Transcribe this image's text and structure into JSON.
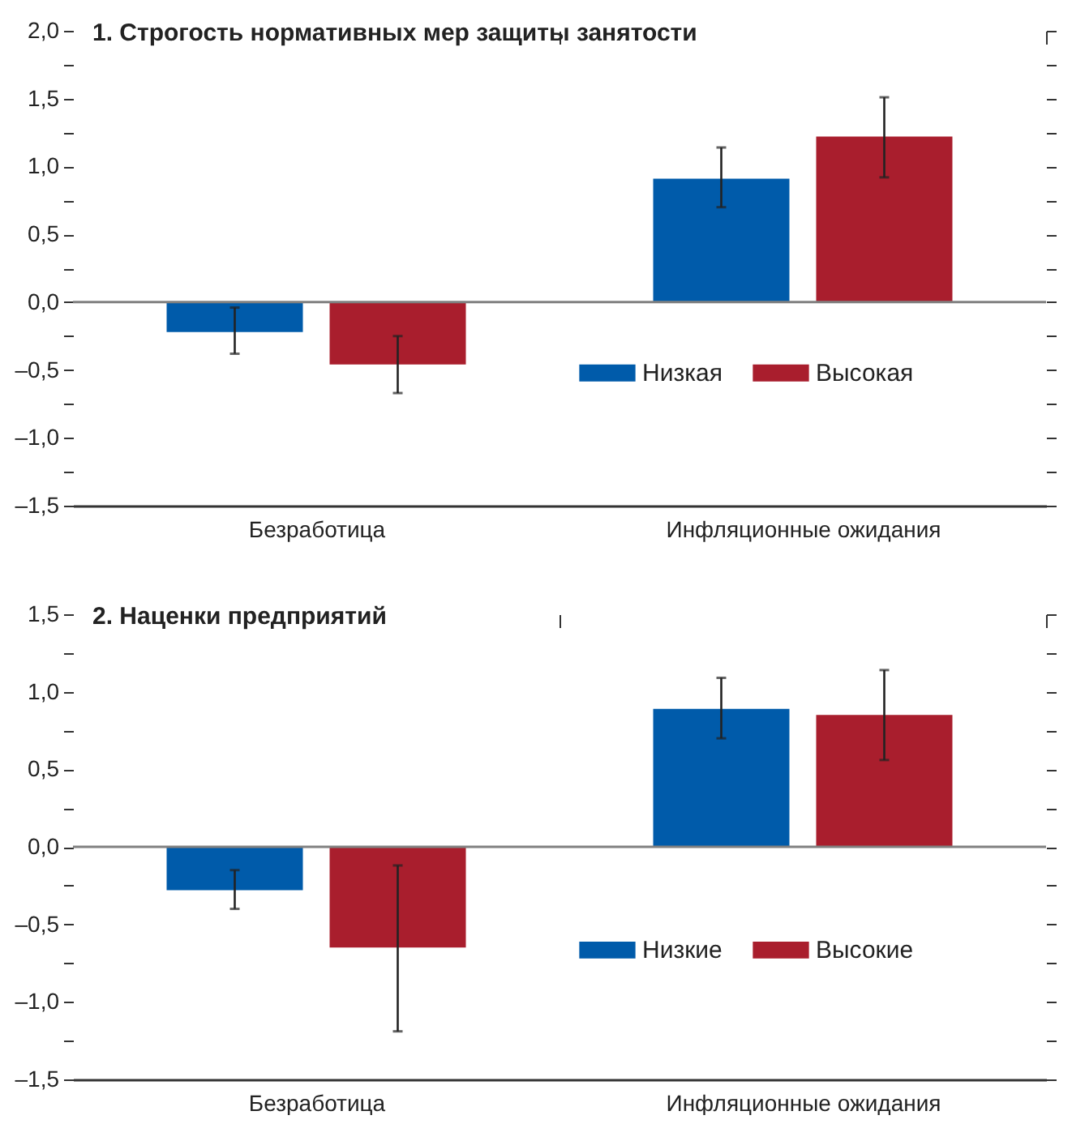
{
  "chart_data": [
    {
      "type": "bar",
      "title": "1. Строгость нормативных мер защиты занятости",
      "categories": [
        "Безработица",
        "Инфляционные ожидания"
      ],
      "series": [
        {
          "name": "Низкая",
          "color": "#005baa",
          "values": [
            -0.22,
            0.91
          ],
          "errors": [
            [
              -0.38,
              -0.04
            ],
            [
              0.7,
              1.14
            ]
          ]
        },
        {
          "name": "Высокая",
          "color": "#a91e2d",
          "values": [
            -0.46,
            1.22
          ],
          "errors": [
            [
              -0.67,
              -0.25
            ],
            [
              0.92,
              1.51
            ]
          ]
        }
      ],
      "ylim": [
        -1.5,
        2.0
      ],
      "yticks": [
        {
          "value": -1.5,
          "label": "–1,5"
        },
        {
          "value": -1.25,
          "label": null
        },
        {
          "value": -1.0,
          "label": "–1,0"
        },
        {
          "value": -0.75,
          "label": null
        },
        {
          "value": -0.5,
          "label": "–0,5"
        },
        {
          "value": -0.25,
          "label": null
        },
        {
          "value": 0,
          "label": "0,0"
        },
        {
          "value": 0.25,
          "label": null
        },
        {
          "value": 0.5,
          "label": "0,5"
        },
        {
          "value": 0.75,
          "label": null
        },
        {
          "value": 1.0,
          "label": "1,0"
        },
        {
          "value": 1.25,
          "label": null
        },
        {
          "value": 1.5,
          "label": "1,5"
        },
        {
          "value": 1.75,
          "label": null
        },
        {
          "value": 2.0,
          "label": "2,0"
        }
      ],
      "ref_lines": [
        {
          "axis": "y",
          "value": 0,
          "color": "#808080"
        }
      ],
      "legend": "bottom right",
      "grid": false
    },
    {
      "type": "bar",
      "title": "2. Наценки предприятий",
      "categories": [
        "Безработица",
        "Инфляционные ожидания"
      ],
      "series": [
        {
          "name": "Низкие",
          "color": "#005baa",
          "values": [
            -0.28,
            0.89
          ],
          "errors": [
            [
              -0.4,
              -0.15
            ],
            [
              0.7,
              1.09
            ]
          ]
        },
        {
          "name": "Высокие",
          "color": "#a91e2d",
          "values": [
            -0.65,
            0.85
          ],
          "errors": [
            [
              -1.19,
              -0.12
            ],
            [
              0.56,
              1.14
            ]
          ]
        }
      ],
      "ylim": [
        -1.5,
        1.5
      ],
      "yticks": [
        {
          "value": -1.5,
          "label": "–1,5"
        },
        {
          "value": -1.25,
          "label": null
        },
        {
          "value": -1.0,
          "label": "–1,0"
        },
        {
          "value": -0.75,
          "label": null
        },
        {
          "value": -0.5,
          "label": "–0,5"
        },
        {
          "value": -0.25,
          "label": null
        },
        {
          "value": 0,
          "label": "0,0"
        },
        {
          "value": 0.25,
          "label": null
        },
        {
          "value": 0.5,
          "label": "0,5"
        },
        {
          "value": 0.75,
          "label": null
        },
        {
          "value": 1.0,
          "label": "1,0"
        },
        {
          "value": 1.25,
          "label": null
        },
        {
          "value": 1.5,
          "label": "1,5"
        }
      ],
      "ref_lines": [
        {
          "axis": "y",
          "value": 0,
          "color": "#808080"
        }
      ],
      "legend": "bottom right",
      "grid": false
    }
  ]
}
